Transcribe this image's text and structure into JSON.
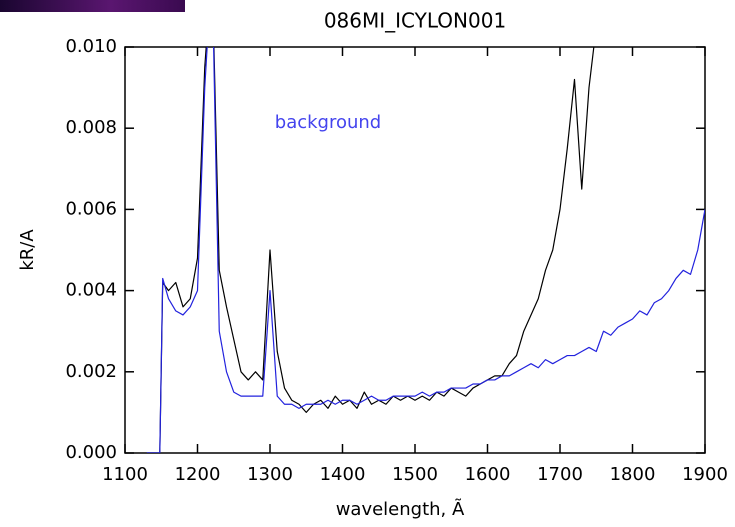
{
  "chart_data": {
    "type": "line",
    "title": "086MI_ICYLON001",
    "xlabel": "wavelength, Ã",
    "ylabel": "kR/A",
    "annotation": "background",
    "x": [
      1130,
      1148,
      1152,
      1160,
      1170,
      1180,
      1190,
      1200,
      1210,
      1220,
      1230,
      1240,
      1250,
      1260,
      1270,
      1280,
      1290,
      1300,
      1310,
      1320,
      1330,
      1340,
      1350,
      1360,
      1370,
      1380,
      1390,
      1400,
      1410,
      1420,
      1430,
      1440,
      1450,
      1460,
      1470,
      1480,
      1490,
      1500,
      1510,
      1520,
      1530,
      1540,
      1550,
      1560,
      1570,
      1580,
      1590,
      1600,
      1610,
      1620,
      1630,
      1640,
      1650,
      1660,
      1670,
      1680,
      1690,
      1700,
      1710,
      1720,
      1730,
      1740,
      1750,
      1760,
      1770,
      1780,
      1790,
      1800,
      1810,
      1820,
      1830,
      1840,
      1850,
      1860,
      1870,
      1880,
      1890,
      1900
    ],
    "series": [
      {
        "color": "#000000",
        "values": [
          0,
          0,
          0.0042,
          0.004,
          0.0042,
          0.0036,
          0.0038,
          0.0048,
          0.0095,
          0.012,
          0.0045,
          0.0036,
          0.0028,
          0.002,
          0.0018,
          0.002,
          0.0018,
          0.005,
          0.0025,
          0.0016,
          0.0013,
          0.0012,
          0.001,
          0.0012,
          0.0013,
          0.0011,
          0.0014,
          0.0012,
          0.0013,
          0.0011,
          0.0015,
          0.0012,
          0.0013,
          0.0012,
          0.0014,
          0.0013,
          0.0014,
          0.0013,
          0.0014,
          0.0013,
          0.0015,
          0.0014,
          0.0016,
          0.0015,
          0.0014,
          0.0016,
          0.0017,
          0.0018,
          0.0019,
          0.0019,
          0.0022,
          0.0024,
          0.003,
          0.0034,
          0.0038,
          0.0045,
          0.005,
          0.006,
          0.0075,
          0.0092,
          0.0065,
          0.009,
          0.0105,
          null,
          null,
          null,
          null,
          null,
          null,
          null,
          null,
          null,
          null,
          null,
          null,
          null,
          null,
          null
        ]
      },
      {
        "name": "background",
        "color": "#2222dd",
        "values": [
          0,
          0,
          0.0043,
          0.0038,
          0.0035,
          0.0034,
          0.0036,
          0.004,
          0.009,
          0.012,
          0.003,
          0.002,
          0.0015,
          0.0014,
          0.0014,
          0.0014,
          0.0014,
          0.004,
          0.0014,
          0.0012,
          0.0012,
          0.0011,
          0.0012,
          0.0012,
          0.0012,
          0.0013,
          0.0012,
          0.0013,
          0.0013,
          0.0012,
          0.0013,
          0.0014,
          0.0013,
          0.0013,
          0.0014,
          0.0014,
          0.0014,
          0.0014,
          0.0015,
          0.0014,
          0.0015,
          0.0015,
          0.0016,
          0.0016,
          0.0016,
          0.0017,
          0.0017,
          0.0018,
          0.0018,
          0.0019,
          0.0019,
          0.002,
          0.0021,
          0.0022,
          0.0021,
          0.0023,
          0.0022,
          0.0023,
          0.0024,
          0.0024,
          0.0025,
          0.0026,
          0.0025,
          0.003,
          0.0029,
          0.0031,
          0.0032,
          0.0033,
          0.0035,
          0.0034,
          0.0037,
          0.0038,
          0.004,
          0.0043,
          0.0045,
          0.0044,
          0.005,
          0.006
        ]
      }
    ],
    "xlim": [
      1100,
      1900
    ],
    "xticks": [
      1100,
      1200,
      1300,
      1400,
      1500,
      1600,
      1700,
      1800,
      1900
    ],
    "ylim": [
      0,
      0.01
    ],
    "yticks": [
      {
        "value": 0,
        "label": "0.000"
      },
      {
        "value": 0.002,
        "label": "0.002"
      },
      {
        "value": 0.004,
        "label": "0.004"
      },
      {
        "value": 0.006,
        "label": "0.006"
      },
      {
        "value": 0.008,
        "label": "0.008"
      },
      {
        "value": 0.01,
        "label": "0.010"
      }
    ],
    "grid": false
  }
}
